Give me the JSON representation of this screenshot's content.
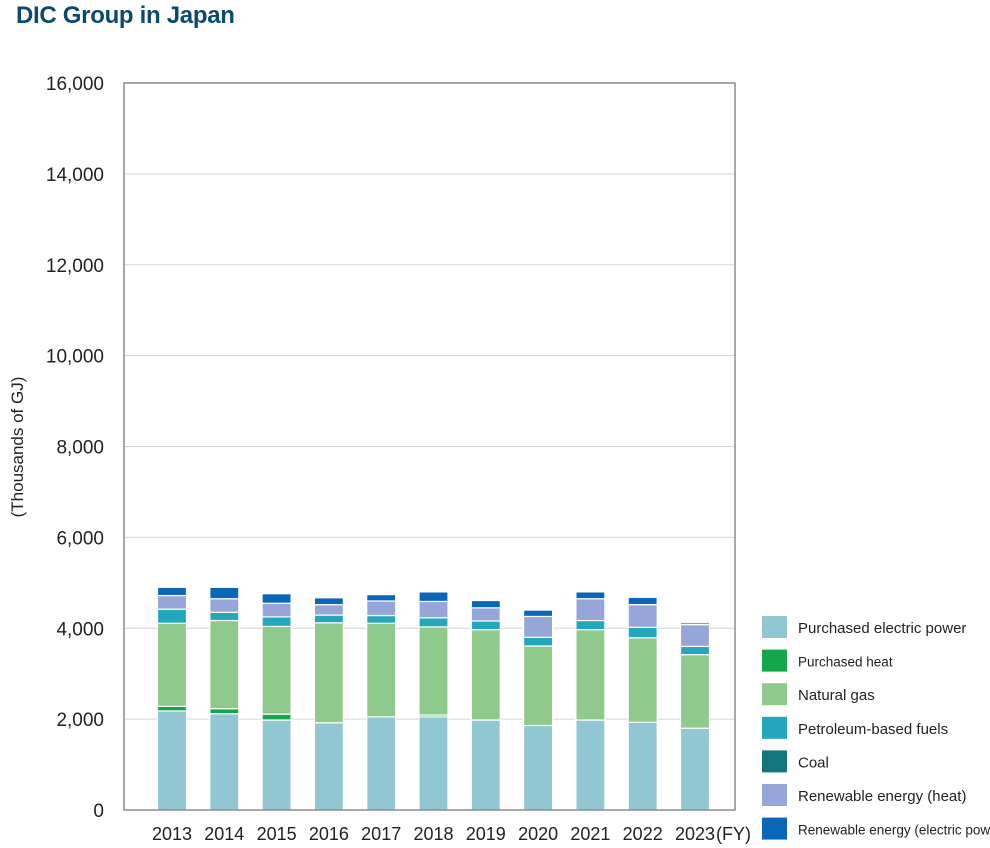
{
  "header": {
    "title": "DIC Group in Japan"
  },
  "chart_data": {
    "type": "bar",
    "stacked": true,
    "title": "DIC Group in Japan",
    "ylabel": "(Thousands of GJ)",
    "xlabel_suffix": "(FY)",
    "ylim": [
      0,
      16000
    ],
    "yticks": [
      0,
      2000,
      4000,
      6000,
      8000,
      10000,
      12000,
      14000,
      16000
    ],
    "ytick_labels": [
      "0",
      "2,000",
      "4,000",
      "6,000",
      "8,000",
      "10,000",
      "12,000",
      "14,000",
      "16,000"
    ],
    "grid": true,
    "legend_position": "right-bottom",
    "categories": [
      "2013",
      "2014",
      "2015",
      "2016",
      "2017",
      "2018",
      "2019",
      "2020",
      "2021",
      "2022",
      "2023"
    ],
    "series": [
      {
        "name": "Purchased electric power",
        "color": "#91c6d3",
        "values": [
          2180,
          2120,
          1980,
          1920,
          2050,
          2050,
          1980,
          1860,
          1980,
          1930,
          1800
        ]
      },
      {
        "name": "Purchased heat",
        "color": "#12a64d",
        "values": [
          100,
          110,
          130,
          0,
          0,
          40,
          0,
          0,
          0,
          0,
          0
        ]
      },
      {
        "name": "Natural gas",
        "color": "#90c98c",
        "values": [
          1830,
          1940,
          1930,
          2200,
          2060,
          1940,
          1990,
          1750,
          1990,
          1860,
          1620
        ]
      },
      {
        "name": "Petroleum-based fuels",
        "color": "#23a7bd",
        "values": [
          310,
          180,
          210,
          170,
          170,
          200,
          190,
          190,
          200,
          230,
          180
        ]
      },
      {
        "name": "Coal",
        "color": "#13767f",
        "values": [
          0,
          0,
          0,
          0,
          0,
          0,
          0,
          0,
          0,
          0,
          0
        ]
      },
      {
        "name": "Renewable energy (heat)",
        "color": "#97a6d9",
        "values": [
          300,
          300,
          300,
          230,
          320,
          360,
          290,
          460,
          480,
          500,
          480
        ]
      },
      {
        "name": "Renewable energy (electric power)",
        "color": "#0a67b7",
        "values": [
          180,
          250,
          210,
          150,
          140,
          210,
          160,
          140,
          150,
          160,
          40
        ]
      }
    ]
  }
}
